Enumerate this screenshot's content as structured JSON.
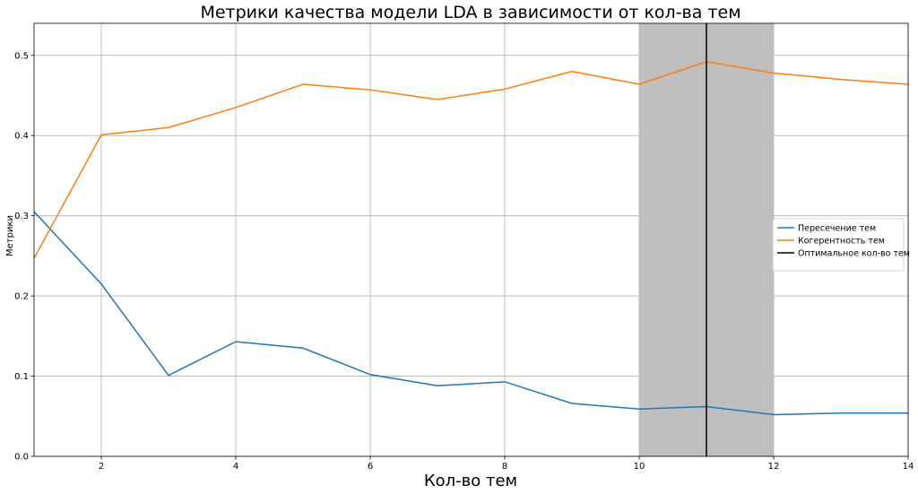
{
  "chart_data": {
    "type": "line",
    "title": "Метрики качества модели LDA в зависимости от кол-ва тем",
    "xlabel": "Кол-во тем",
    "ylabel": "Метрики",
    "xlim": [
      1,
      14
    ],
    "ylim": [
      0,
      0.54
    ],
    "x_ticks": [
      2,
      4,
      6,
      8,
      10,
      12,
      14
    ],
    "y_ticks": [
      0.0,
      0.1,
      0.2,
      0.3,
      0.4,
      0.5
    ],
    "grid": true,
    "legend_position": "center-right",
    "x": [
      1,
      2,
      3,
      4,
      5,
      6,
      7,
      8,
      9,
      10,
      11,
      12,
      13,
      14
    ],
    "series": [
      {
        "name": "Пересечение тем",
        "color": "#1f77b4",
        "values": [
          0.305,
          0.215,
          0.101,
          0.143,
          0.135,
          0.102,
          0.088,
          0.093,
          0.066,
          0.059,
          0.062,
          0.052,
          0.054,
          0.054
        ]
      },
      {
        "name": "Когерентность тем",
        "color": "#ff7f0e",
        "values": [
          0.247,
          0.401,
          0.41,
          0.435,
          0.464,
          0.457,
          0.445,
          0.458,
          0.48,
          0.464,
          0.492,
          0.478,
          0.47,
          0.464
        ]
      }
    ],
    "optimal": {
      "name": "Оптимальное кол-во тем",
      "x": 11,
      "color": "#000000"
    },
    "shaded_region": {
      "x_range": [
        10,
        12
      ],
      "color": "#bfbfbf"
    }
  }
}
